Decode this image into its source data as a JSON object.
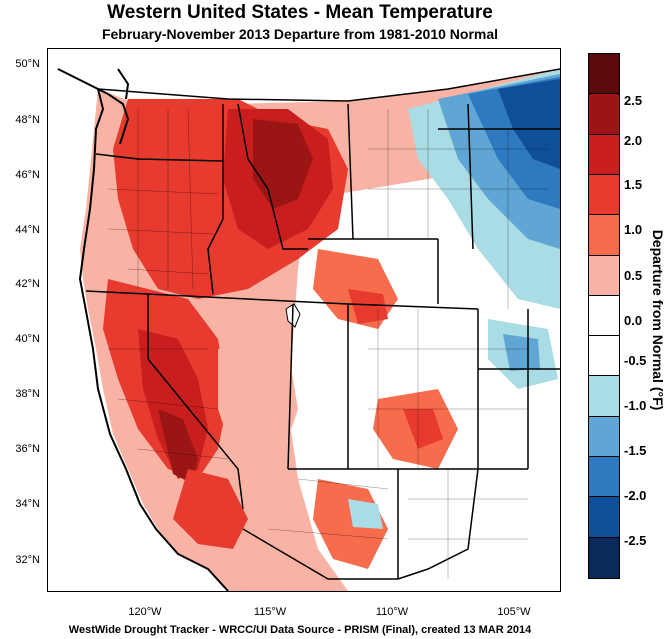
{
  "title": "Western United States - Mean Temperature",
  "subtitle": "February-November 2013  Departure from 1981-2010 Normal",
  "footer": "WestWide Drought Tracker - WRCC/UI  Data Source - PRISM (Final), created 13 MAR 2014",
  "latitudes": [
    "50°N",
    "48°N",
    "46°N",
    "44°N",
    "42°N",
    "40°N",
    "38°N",
    "36°N",
    "34°N",
    "32°N"
  ],
  "longitudes": [
    "120°W",
    "115°W",
    "110°W",
    "105°W"
  ],
  "legend": {
    "title": "Departure from Normal (°F)",
    "labels": [
      "2.5",
      "2.0",
      "1.5",
      "1.0",
      "0.5",
      "0.0",
      "-0.5",
      "-1.0",
      "-1.5",
      "-2.0",
      "-2.5"
    ],
    "colors": [
      "#5a0a0a",
      "#9b1515",
      "#c91e1e",
      "#e63b2e",
      "#f86c4e",
      "#f8b3a4",
      "#ffffff",
      "#ffffff",
      "#a9dce4",
      "#5fa6d4",
      "#2f79c0",
      "#0f4f9a",
      "#0b2a5c"
    ]
  }
}
